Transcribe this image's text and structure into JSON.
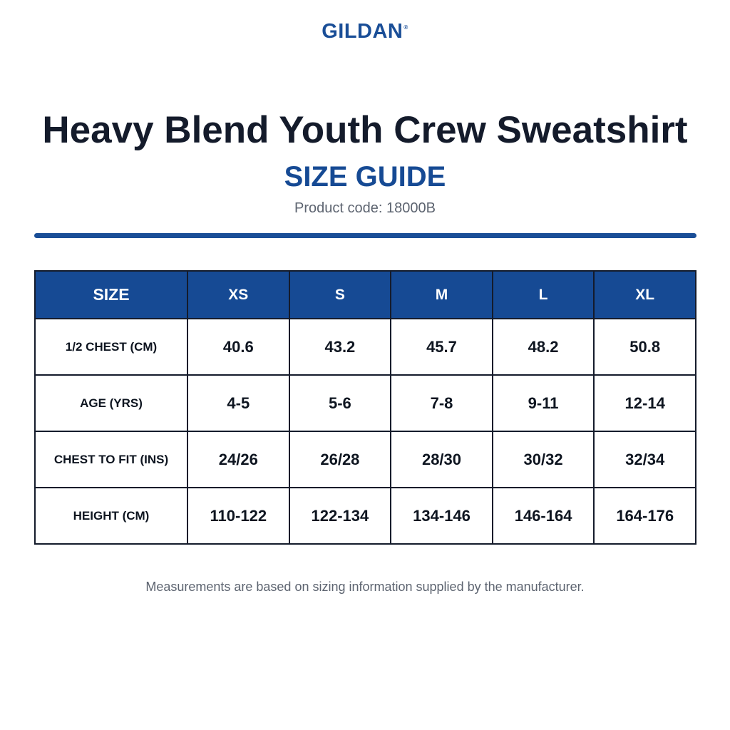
{
  "brand": {
    "name": "GILDAN",
    "mark": "®"
  },
  "title": "Heavy Blend Youth Crew Sweatshirt",
  "subtitle": "SIZE GUIDE",
  "product_code": "Product code: 18000B",
  "colors": {
    "accent": "#1a4e97",
    "header_bg": "#164a94",
    "text_dark": "#141b2b",
    "muted": "#5d6470"
  },
  "table": {
    "header": [
      "SIZE",
      "XS",
      "S",
      "M",
      "L",
      "XL"
    ],
    "rows": [
      {
        "label": "1/2 CHEST (CM)",
        "values": [
          "40.6",
          "43.2",
          "45.7",
          "48.2",
          "50.8"
        ]
      },
      {
        "label": "AGE (YRS)",
        "values": [
          "4-5",
          "5-6",
          "7-8",
          "9-11",
          "12-14"
        ]
      },
      {
        "label": "CHEST TO FIT (INS)",
        "values": [
          "24/26",
          "26/28",
          "28/30",
          "30/32",
          "32/34"
        ]
      },
      {
        "label": "HEIGHT (CM)",
        "values": [
          "110-122",
          "122-134",
          "134-146",
          "146-164",
          "164-176"
        ]
      }
    ]
  },
  "footnote": "Measurements are based on sizing information supplied by the manufacturer."
}
